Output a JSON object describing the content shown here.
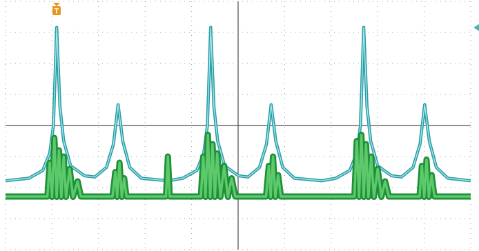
{
  "chart_data": {
    "type": "line",
    "trigger_label": "T",
    "xlim": [
      0,
      10
    ],
    "ylim": [
      -4,
      4
    ],
    "xticks": [
      0,
      1,
      2,
      3,
      4,
      5,
      6,
      7,
      8,
      9,
      10
    ],
    "yticks": [
      -4,
      -3,
      -2,
      -1,
      0,
      1,
      2,
      3,
      4
    ],
    "grid": true,
    "series": [
      {
        "color": "#2a9ea6",
        "x": [
          0,
          0.5,
          0.8,
          0.95,
          1.03,
          1.1,
          1.17,
          1.25,
          1.4,
          1.7,
          1.92,
          2.17,
          2.32,
          2.42,
          2.52,
          2.67,
          2.92,
          3.5,
          3.81,
          4.11,
          4.26,
          4.34,
          4.41,
          4.48,
          4.56,
          4.71,
          5.01,
          5.21,
          5.46,
          5.61,
          5.71,
          5.81,
          5.96,
          6.21,
          6.8,
          7.1,
          7.4,
          7.55,
          7.63,
          7.7,
          7.77,
          7.85,
          8.0,
          8.3,
          8.51,
          8.76,
          8.91,
          9.01,
          9.11,
          9.26,
          9.51,
          10
        ],
        "values": [
          -1.78,
          -1.7,
          -1.45,
          -0.9,
          0.0,
          3.16,
          0.6,
          -0.5,
          -1.3,
          -1.62,
          -1.66,
          -1.35,
          -0.6,
          0.67,
          -0.5,
          -1.35,
          -1.7,
          -1.78,
          -1.7,
          -1.45,
          -0.9,
          0.0,
          3.16,
          0.6,
          -0.5,
          -1.3,
          -1.62,
          -1.66,
          -1.35,
          -0.6,
          0.67,
          -0.5,
          -1.35,
          -1.7,
          -1.78,
          -1.7,
          -1.45,
          -0.9,
          0.0,
          3.16,
          0.6,
          -0.5,
          -1.3,
          -1.62,
          -1.66,
          -1.35,
          -0.6,
          0.67,
          -0.5,
          -1.35,
          -1.7,
          -1.78
        ]
      },
      {
        "color": "#1f8f3a",
        "x": [
          0,
          0.9,
          0.95,
          1.0,
          1.05,
          1.1,
          1.15,
          1.2,
          1.25,
          1.3,
          1.38,
          1.45,
          1.55,
          1.62,
          2.3,
          2.36,
          2.4,
          2.45,
          2.5,
          2.55,
          2.6,
          3.45,
          3.49,
          3.53,
          4.2,
          4.25,
          4.3,
          4.35,
          4.4,
          4.45,
          4.5,
          4.55,
          4.62,
          4.7,
          4.78,
          4.86,
          4.94,
          5.6,
          5.66,
          5.7,
          5.75,
          5.8,
          5.86,
          5.92,
          7.5,
          7.55,
          7.6,
          7.65,
          7.7,
          7.75,
          7.8,
          7.86,
          7.92,
          8.0,
          8.08,
          8.16,
          8.24,
          8.9,
          8.95,
          9.0,
          9.05,
          9.1,
          9.16,
          9.22,
          10
        ],
        "values": [
          -2.29,
          -2.29,
          -1.2,
          -2.3,
          -0.4,
          -2.3,
          -0.8,
          -2.3,
          -1.0,
          -2.3,
          -1.4,
          -2.3,
          -1.8,
          -2.29,
          -2.29,
          -1.5,
          -2.3,
          -1.2,
          -2.3,
          -1.7,
          -2.29,
          -2.29,
          -1.0,
          -2.29,
          -2.29,
          -1.0,
          -2.3,
          -0.3,
          -2.3,
          -0.6,
          -2.3,
          -0.9,
          -2.3,
          -1.3,
          -2.3,
          -1.7,
          -2.29,
          -2.29,
          -1.3,
          -2.3,
          -1.0,
          -2.3,
          -1.6,
          -2.29,
          -2.29,
          -0.5,
          -2.3,
          -0.3,
          -2.3,
          -0.6,
          -2.3,
          -1.0,
          -2.3,
          -1.4,
          -2.3,
          -1.8,
          -2.29,
          -2.29,
          -1.3,
          -2.3,
          -1.1,
          -2.3,
          -1.6,
          -2.29,
          -2.29
        ]
      }
    ]
  }
}
